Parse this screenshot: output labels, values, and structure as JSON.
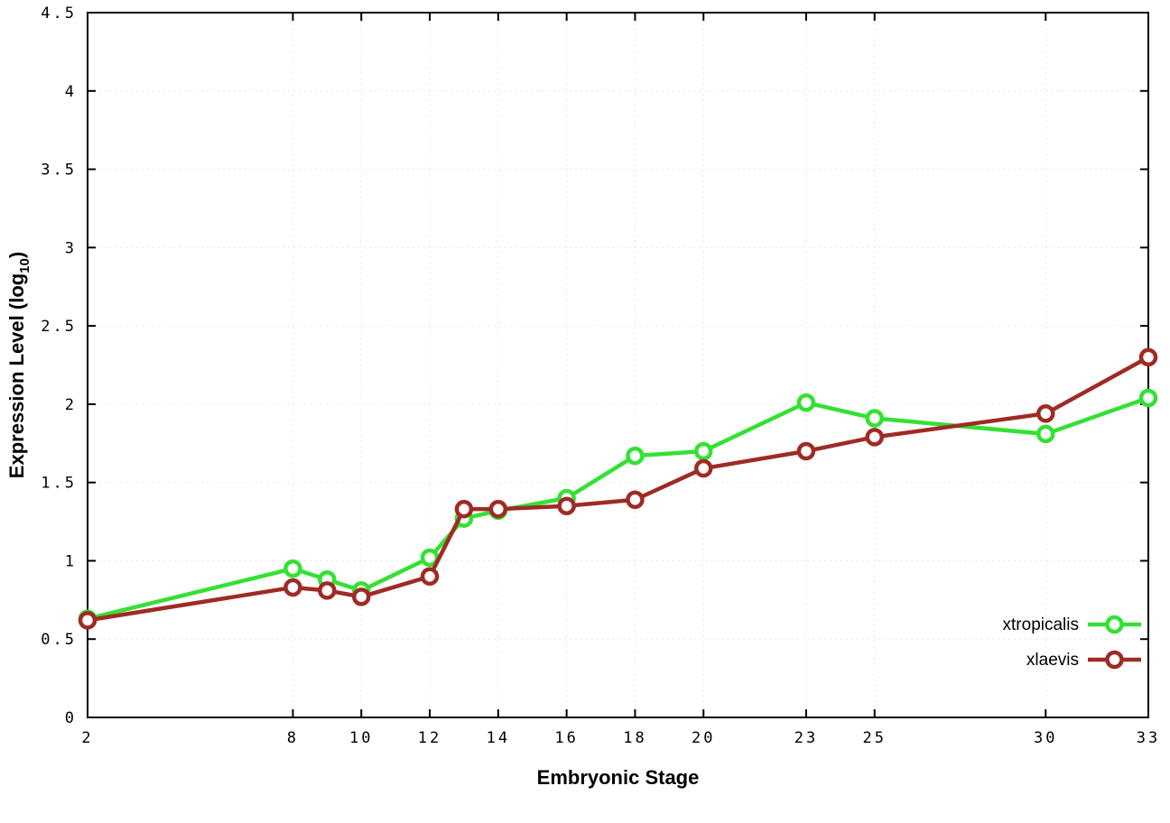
{
  "chart_data": {
    "type": "line",
    "title": "",
    "xlabel": "Embryonic Stage",
    "ylabel": "Expression Level (log10)",
    "ylabel_parts": {
      "pre": "Expression Level (log",
      "sub": "10",
      "post": ")"
    },
    "xlim": [
      2,
      33
    ],
    "ylim": [
      0,
      4.5
    ],
    "xticks": [
      2,
      8,
      10,
      12,
      14,
      16,
      18,
      20,
      23,
      25,
      30,
      33
    ],
    "xtick_labels": [
      "2",
      "8",
      "10",
      "12",
      "14",
      "16",
      "18",
      "20",
      "23",
      "25",
      "30",
      "33"
    ],
    "yticks": [
      0,
      0.5,
      1,
      1.5,
      2,
      2.5,
      3,
      3.5,
      4,
      4.5
    ],
    "ytick_labels": [
      "0",
      "0.5",
      "1",
      "1.5",
      "2",
      "2.5",
      "3",
      "3.5",
      "4",
      "4.5"
    ],
    "grid": true,
    "grid_color": "#e6e6e6",
    "border_color": "#000000",
    "background_color": "#ffffff",
    "legend_position": "bottom-right",
    "x": [
      2,
      8,
      9,
      10,
      12,
      13,
      14,
      16,
      18,
      20,
      23,
      25,
      30,
      33
    ],
    "series": [
      {
        "name": "xtropicalis",
        "color": "#33e133",
        "values": [
          0.63,
          0.95,
          0.88,
          0.81,
          1.02,
          1.27,
          1.32,
          1.4,
          1.67,
          1.7,
          2.01,
          1.91,
          1.81,
          2.04
        ]
      },
      {
        "name": "xlaevis",
        "color": "#9e2b25",
        "values": [
          0.62,
          0.83,
          0.81,
          0.77,
          0.9,
          1.33,
          1.33,
          1.35,
          1.39,
          1.59,
          1.7,
          1.79,
          1.94,
          2.3
        ]
      }
    ]
  }
}
